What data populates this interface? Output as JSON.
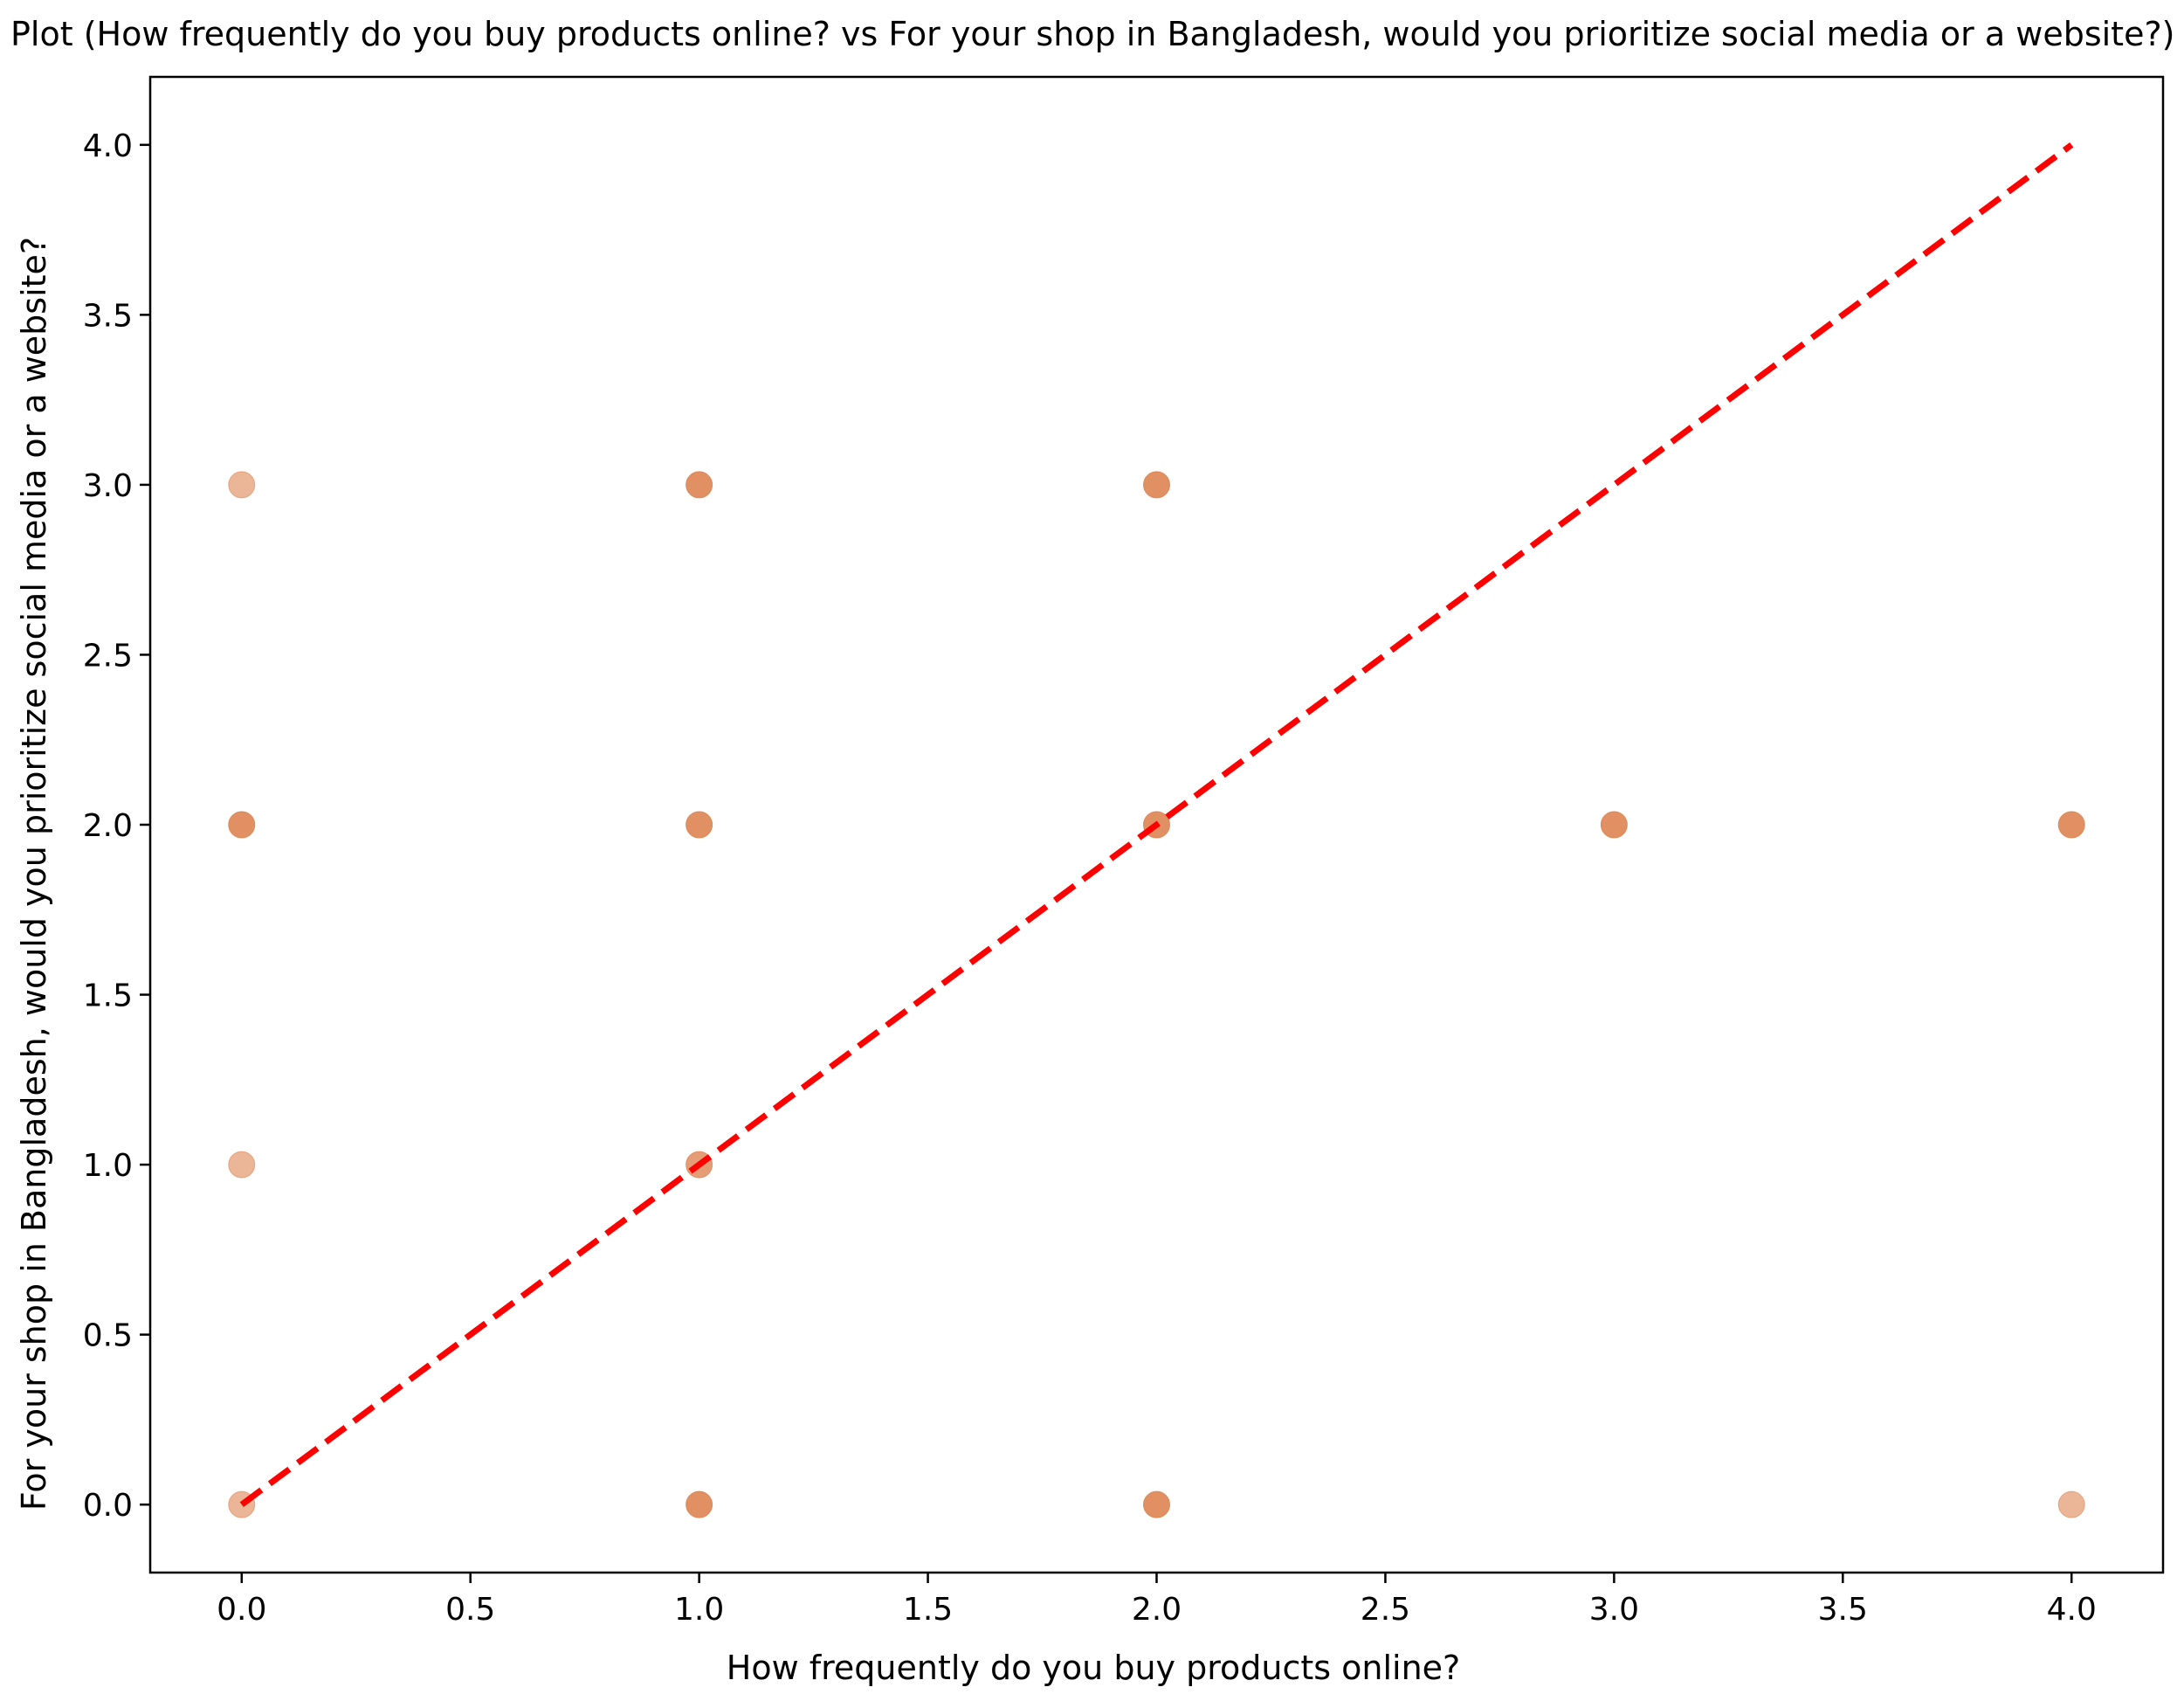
{
  "chart_data": {
    "type": "scatter",
    "title": "Plot (How frequently do you buy products online? vs For your shop in Bangladesh, would you prioritize social media or a website?)",
    "xlabel": "How frequently do you buy products online?",
    "ylabel": "For your shop in Bangladesh, would you prioritize social media or a website?",
    "xlim": [
      -0.2,
      4.2
    ],
    "ylim": [
      -0.2,
      4.2
    ],
    "x_ticks": [
      0.0,
      0.5,
      1.0,
      1.5,
      2.0,
      2.5,
      3.0,
      3.5,
      4.0
    ],
    "y_ticks": [
      0.0,
      0.5,
      1.0,
      1.5,
      2.0,
      2.5,
      3.0,
      3.5,
      4.0
    ],
    "x_tick_labels": [
      "0.0",
      "0.5",
      "1.0",
      "1.5",
      "2.0",
      "2.5",
      "3.0",
      "3.5",
      "4.0"
    ],
    "y_tick_labels": [
      "0.0",
      "0.5",
      "1.0",
      "1.5",
      "2.0",
      "2.5",
      "3.0",
      "3.5",
      "4.0"
    ],
    "grid": false,
    "points": [
      {
        "x": 0,
        "y": 3,
        "opacity": 0.6
      },
      {
        "x": 0,
        "y": 2,
        "opacity": 0.9
      },
      {
        "x": 0,
        "y": 1,
        "opacity": 0.6
      },
      {
        "x": 0,
        "y": 0,
        "opacity": 0.6
      },
      {
        "x": 1,
        "y": 3,
        "opacity": 0.9
      },
      {
        "x": 1,
        "y": 2,
        "opacity": 0.9
      },
      {
        "x": 1,
        "y": 1,
        "opacity": 0.8
      },
      {
        "x": 1,
        "y": 0,
        "opacity": 0.9
      },
      {
        "x": 2,
        "y": 3,
        "opacity": 0.9
      },
      {
        "x": 2,
        "y": 2,
        "opacity": 0.9
      },
      {
        "x": 2,
        "y": 0,
        "opacity": 0.9
      },
      {
        "x": 3,
        "y": 2,
        "opacity": 0.9
      },
      {
        "x": 4,
        "y": 2,
        "opacity": 0.9
      },
      {
        "x": 4,
        "y": 0,
        "opacity": 0.6
      }
    ],
    "reference_line": {
      "x": [
        0,
        4
      ],
      "y": [
        0,
        4
      ],
      "style": "dashed",
      "color": "#ff0000"
    },
    "point_color": "#dd8452"
  }
}
